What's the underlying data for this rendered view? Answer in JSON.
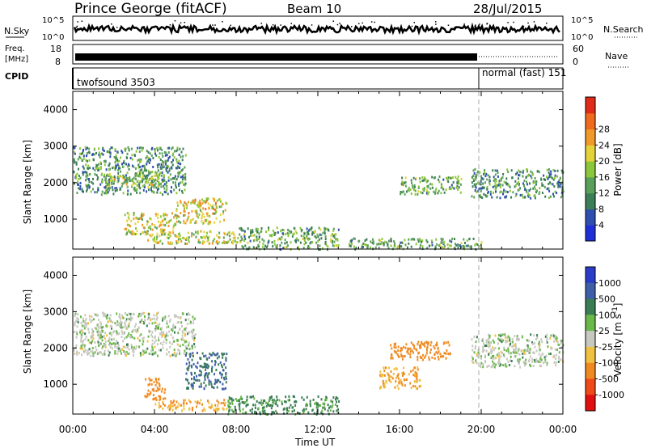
{
  "header": {
    "station": "Prince George (fitACF)",
    "beam": "Beam 10",
    "date": "28/Jul/2015"
  },
  "noise_panel": {
    "left_label": "N.Sky",
    "left_top_tick": "10^5",
    "left_bottom_tick": "10^0",
    "right_label": "N.Search",
    "right_top_tick": "10^5",
    "right_bottom_tick": "10^0"
  },
  "freq_panel": {
    "left_label_line1": "Freq.",
    "left_label_line2": "[MHz]",
    "left_top_tick": "18",
    "left_bottom_tick": "8",
    "right_label": "Nave",
    "right_top_tick": "60",
    "right_bottom_tick": "0"
  },
  "cpid_panel": {
    "label": "CPID",
    "mode_1": "twofsound 3503",
    "mode_2": "normal (fast) 151",
    "mode_change_hour": 20
  },
  "power_panel": {
    "ylabel": "Slant Range [km]",
    "yticks": [
      "1000",
      "2000",
      "3000",
      "4000"
    ],
    "colorbar_label": "Power [dB]",
    "colorbar_ticks": [
      "4",
      "8",
      "12",
      "16",
      "20",
      "24",
      "28"
    ],
    "colorbar_colors": [
      "#1e2fd8",
      "#2f4fb0",
      "#3c7e57",
      "#5aa05a",
      "#8cc63a",
      "#e4d23a",
      "#f09a2a",
      "#f06a1e",
      "#e02a1a"
    ]
  },
  "velocity_panel": {
    "ylabel": "Slant Range [km]",
    "yticks": [
      "1000",
      "2000",
      "3000",
      "4000"
    ],
    "colorbar_label": "Velocity [m s^-1]",
    "colorbar_ticks": [
      "1000",
      "500",
      "100",
      "25",
      "-25",
      "-100",
      "-500",
      "-1000"
    ],
    "colorbar_colors": [
      "#2a3cc8",
      "#3e5fa8",
      "#3a7d55",
      "#6ab84a",
      "#c8c8c0",
      "#f0c040",
      "#f08a20",
      "#f04a18",
      "#e01010"
    ]
  },
  "xaxis": {
    "label": "Time UT",
    "ticks": [
      "00:00",
      "04:00",
      "08:00",
      "12:00",
      "16:00",
      "20:00",
      "00:00"
    ]
  },
  "chart_data": {
    "type": "heatmap",
    "x_range_hours": [
      0,
      24
    ],
    "y_range_km": [
      180,
      4500
    ],
    "power_regions": [
      {
        "start_h": 0.0,
        "end_h": 5.5,
        "range_start_km": 1700,
        "range_end_km": 3000,
        "power_db": 12
      },
      {
        "start_h": 1.5,
        "end_h": 4.5,
        "range_start_km": 1900,
        "range_end_km": 2300,
        "power_db": 18
      },
      {
        "start_h": 2.5,
        "end_h": 5.0,
        "range_start_km": 600,
        "range_end_km": 1200,
        "power_db": 20
      },
      {
        "start_h": 3.5,
        "end_h": 8.0,
        "range_start_km": 350,
        "range_end_km": 700,
        "power_db": 20
      },
      {
        "start_h": 5.0,
        "end_h": 7.5,
        "range_start_km": 900,
        "range_end_km": 1600,
        "power_db": 22
      },
      {
        "start_h": 8.0,
        "end_h": 13.0,
        "range_start_km": 200,
        "range_end_km": 800,
        "power_db": 14
      },
      {
        "start_h": 13.5,
        "end_h": 20.0,
        "range_start_km": 200,
        "range_end_km": 500,
        "power_db": 14
      },
      {
        "start_h": 16.0,
        "end_h": 19.0,
        "range_start_km": 1700,
        "range_end_km": 2200,
        "power_db": 14
      },
      {
        "start_h": 19.5,
        "end_h": 24.0,
        "range_start_km": 1600,
        "range_end_km": 2400,
        "power_db": 12
      }
    ],
    "velocity_regions": [
      {
        "start_h": 0.0,
        "end_h": 6.0,
        "range_start_km": 1800,
        "range_end_km": 3000,
        "velocity_ms": 0
      },
      {
        "start_h": 3.5,
        "end_h": 4.5,
        "range_start_km": 600,
        "range_end_km": 1200,
        "velocity_ms": -150
      },
      {
        "start_h": 4.0,
        "end_h": 7.5,
        "range_start_km": 300,
        "range_end_km": 600,
        "velocity_ms": -100
      },
      {
        "start_h": 5.5,
        "end_h": 7.5,
        "range_start_km": 900,
        "range_end_km": 1900,
        "velocity_ms": 100
      },
      {
        "start_h": 7.5,
        "end_h": 13.0,
        "range_start_km": 200,
        "range_end_km": 700,
        "velocity_ms": 40
      },
      {
        "start_h": 15.5,
        "end_h": 18.5,
        "range_start_km": 1700,
        "range_end_km": 2200,
        "velocity_ms": -150
      },
      {
        "start_h": 15.0,
        "end_h": 17.0,
        "range_start_km": 900,
        "range_end_km": 1500,
        "velocity_ms": -100
      },
      {
        "start_h": 19.5,
        "end_h": 24.0,
        "range_start_km": 1500,
        "range_end_km": 2400,
        "velocity_ms": 0
      }
    ]
  }
}
